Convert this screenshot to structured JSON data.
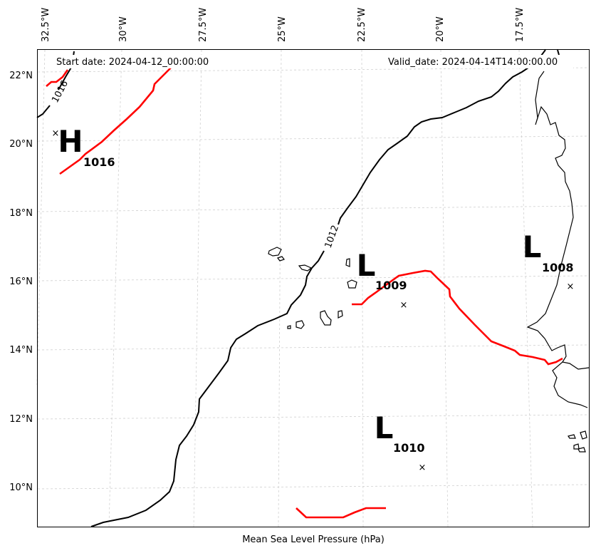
{
  "header": {
    "start_date": "Start date: 2024-04-12_00:00:00",
    "valid_date": "Valid_date: 2024-04-14T14:00:00.00"
  },
  "footer": {
    "caption": "Mean Sea Level Pressure (hPa)"
  },
  "axes": {
    "lon_ticks": [
      "32.5°W",
      "30°W",
      "27.5°W",
      "25°W",
      "22.5°W",
      "20°W",
      "17.5°W"
    ],
    "lat_ticks": [
      "22°N",
      "20°N",
      "18°N",
      "16°N",
      "14°N",
      "12°N",
      "10°N"
    ]
  },
  "isobars": [
    {
      "value": "1016",
      "color": "#000000"
    },
    {
      "value": "1012",
      "color": "#000000"
    }
  ],
  "fronts_color": "#ff0000",
  "pressure_centers": [
    {
      "type": "H",
      "value": "1016"
    },
    {
      "type": "L",
      "value": "1009"
    },
    {
      "type": "L",
      "value": "1008"
    },
    {
      "type": "L",
      "value": "1010"
    }
  ],
  "centers_marker": "×"
}
